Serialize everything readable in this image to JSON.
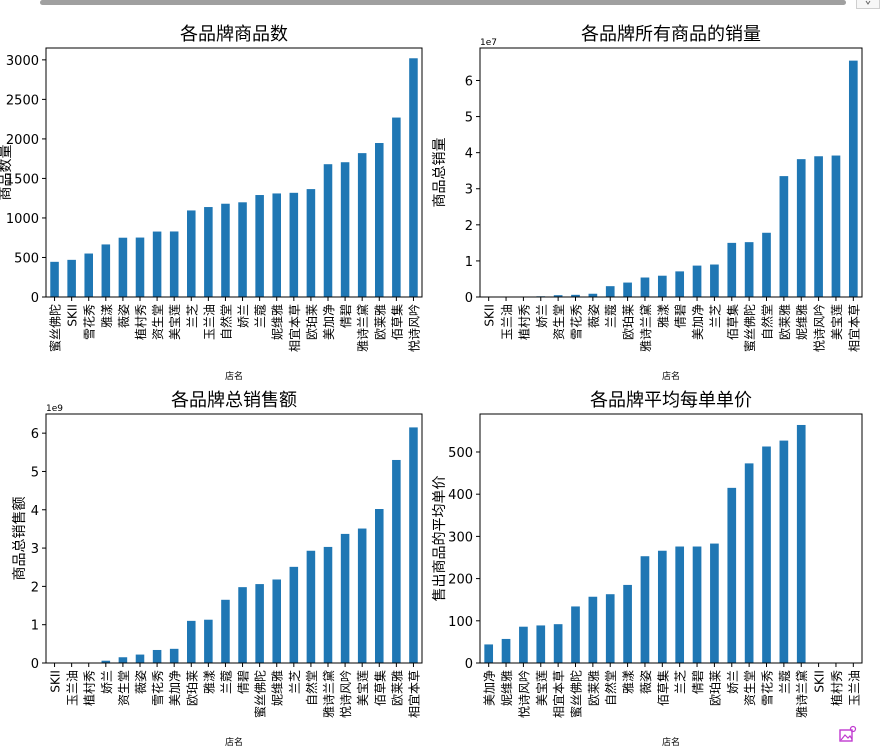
{
  "icons": {
    "corner": "chevron-icon",
    "image_tool": "image-edit-icon"
  },
  "colors": {
    "bar": "#1f77b4"
  },
  "chart_data": [
    {
      "type": "bar",
      "title": "各品牌商品数",
      "xlabel": "店名",
      "ylabel": "商品数量",
      "exponent": "",
      "ylim": [
        0,
        3150
      ],
      "yticks": [
        0,
        500,
        1000,
        1500,
        2000,
        2500,
        3000
      ],
      "ytick_labels": [
        "0",
        "500",
        "1000",
        "1500",
        "2000",
        "2500",
        "3000"
      ],
      "categories": [
        "蜜丝佛陀",
        "SKII",
        "雪花秀",
        "雅漾",
        "薇姿",
        "植村秀",
        "资生堂",
        "美宝莲",
        "兰芝",
        "玉兰油",
        "自然堂",
        "娇兰",
        "兰蔻",
        "妮维雅",
        "相宜本草",
        "欧珀莱",
        "美加净",
        "倩碧",
        "雅诗兰黛",
        "欧莱雅",
        "佰草集",
        "悦诗风吟"
      ],
      "values": [
        445,
        470,
        550,
        665,
        750,
        752,
        828,
        829,
        1095,
        1138,
        1180,
        1198,
        1290,
        1310,
        1318,
        1365,
        1680,
        1705,
        1820,
        1948,
        2270,
        3020
      ]
    },
    {
      "type": "bar",
      "title": "各品牌所有商品的销量",
      "xlabel": "店名",
      "ylabel": "商品总销量",
      "exponent": "1e7",
      "ylim": [
        0,
        6.9
      ],
      "yticks": [
        0,
        1,
        2,
        3,
        4,
        5,
        6
      ],
      "ytick_labels": [
        "0",
        "1",
        "2",
        "3",
        "4",
        "5",
        "6"
      ],
      "categories": [
        "SKII",
        "玉兰油",
        "植村秀",
        "娇兰",
        "资生堂",
        "雪花秀",
        "薇姿",
        "兰蔻",
        "欧珀莱",
        "雅诗兰黛",
        "雅漾",
        "倩碧",
        "美加净",
        "兰芝",
        "佰草集",
        "蜜丝佛陀",
        "自然堂",
        "欧莱雅",
        "妮维雅",
        "悦诗风吟",
        "美宝莲",
        "相宜本草"
      ],
      "values": [
        0.0,
        0.002,
        0.006,
        0.02,
        0.05,
        0.06,
        0.09,
        0.3,
        0.4,
        0.54,
        0.59,
        0.71,
        0.87,
        0.9,
        1.5,
        1.52,
        1.78,
        3.35,
        3.82,
        3.9,
        3.92,
        6.55
      ]
    },
    {
      "type": "bar",
      "title": "各品牌总销售额",
      "xlabel": "店名",
      "ylabel": "商品总销售额",
      "exponent": "1e9",
      "ylim": [
        0,
        6.5
      ],
      "yticks": [
        0,
        1,
        2,
        3,
        4,
        5,
        6
      ],
      "ytick_labels": [
        "0",
        "1",
        "2",
        "3",
        "4",
        "5",
        "6"
      ],
      "categories": [
        "SKII",
        "玉兰油",
        "植村秀",
        "娇兰",
        "资生堂",
        "薇姿",
        "雪花秀",
        "美加净",
        "欧珀莱",
        "雅漾",
        "兰蔻",
        "倩碧",
        "蜜丝佛陀",
        "妮维雅",
        "兰芝",
        "自然堂",
        "雅诗兰黛",
        "悦诗风吟",
        "美宝莲",
        "佰草集",
        "欧莱雅",
        "相宜本草"
      ],
      "values": [
        0.0,
        0.005,
        0.01,
        0.06,
        0.15,
        0.22,
        0.34,
        0.37,
        1.1,
        1.13,
        1.65,
        1.98,
        2.06,
        2.18,
        2.51,
        2.93,
        3.03,
        3.37,
        3.51,
        4.02,
        5.3,
        6.15
      ]
    },
    {
      "type": "bar",
      "title": "各品牌平均每单单价",
      "xlabel": "店名",
      "ylabel": "售出商品的平均单价",
      "exponent": "",
      "ylim": [
        0,
        590
      ],
      "yticks": [
        0,
        100,
        200,
        300,
        400,
        500
      ],
      "ytick_labels": [
        "0",
        "100",
        "200",
        "300",
        "400",
        "500"
      ],
      "categories": [
        "美加净",
        "妮维雅",
        "悦诗风吟",
        "美宝莲",
        "相宜本草",
        "蜜丝佛陀",
        "欧莱雅",
        "自然堂",
        "雅漾",
        "薇姿",
        "佰草集",
        "兰芝",
        "倩碧",
        "欧珀莱",
        "娇兰",
        "资生堂",
        "雪花秀",
        "兰蔻",
        "雅诗兰黛",
        "SKII",
        "植村秀",
        "玉兰油"
      ],
      "values": [
        44,
        57,
        86,
        89,
        92,
        134,
        157,
        163,
        185,
        253,
        266,
        276,
        276,
        283,
        415,
        473,
        513,
        527,
        564,
        0,
        0,
        0
      ]
    }
  ]
}
